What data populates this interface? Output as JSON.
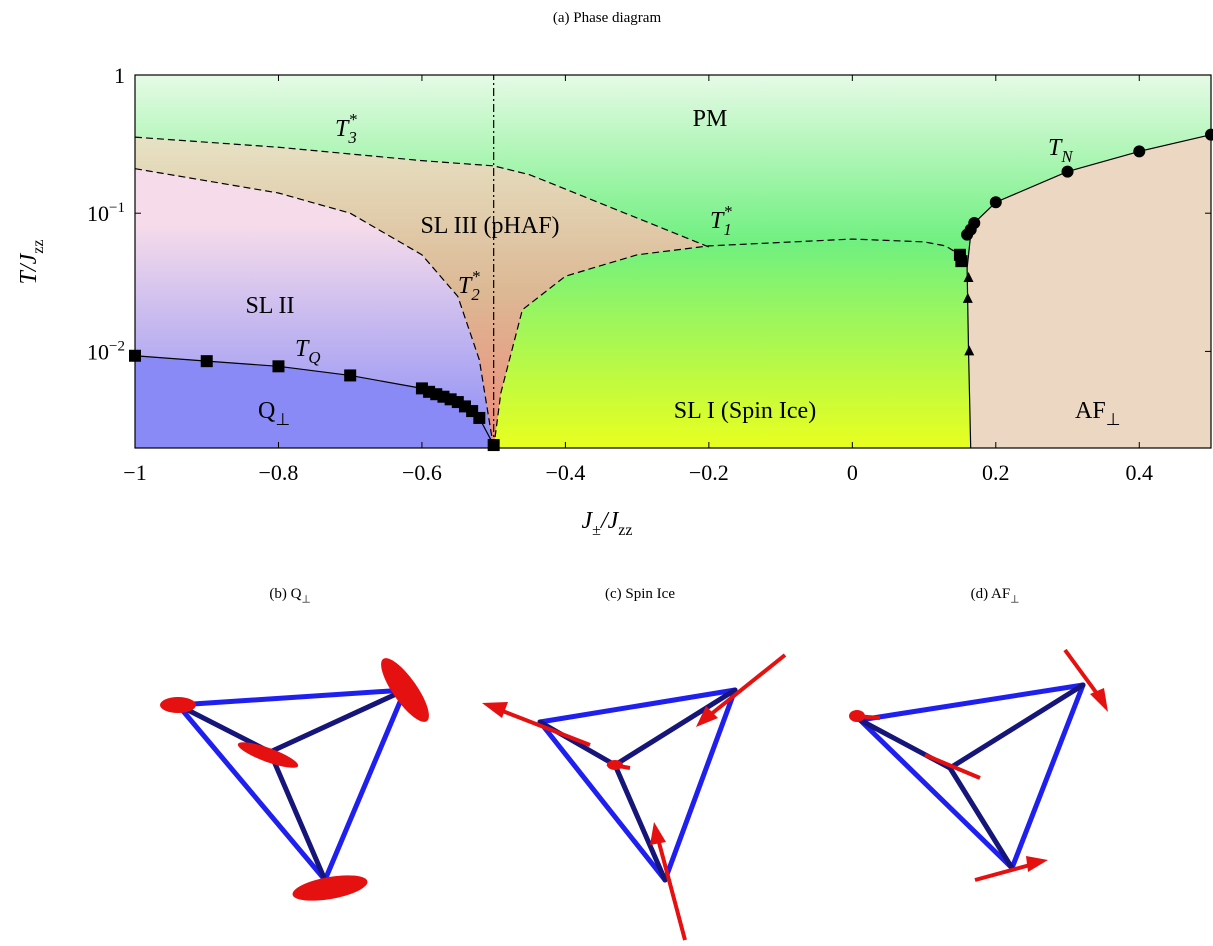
{
  "chart_data": {
    "type": "phase-diagram",
    "title": "(a) Phase diagram",
    "xlabel": [
      {
        "text": "J",
        "sub": "±"
      },
      {
        "text": "/J",
        "sub": "zz"
      }
    ],
    "ylabel": [
      {
        "text": "T/J",
        "sub": "zz"
      }
    ],
    "xlim": [
      -1,
      0.5
    ],
    "ylim": [
      0.002,
      1
    ],
    "ylog": true,
    "xticks": [
      {
        "value": -1,
        "label": "−1"
      },
      {
        "value": -0.8,
        "label": "−0.8"
      },
      {
        "value": -0.6,
        "label": "−0.6"
      },
      {
        "value": -0.4,
        "label": "−0.4"
      },
      {
        "value": -0.2,
        "label": "−0.2"
      },
      0,
      0.2,
      0.4
    ],
    "yticks": [
      {
        "value": 0.01,
        "label": "10",
        "sup": "−2"
      },
      {
        "value": 0.1,
        "label": "10",
        "sup": "−1"
      },
      1
    ],
    "series": [
      {
        "line": "dashed",
        "x": [
          -1,
          -0.8,
          -0.6,
          -0.5,
          -0.45,
          -0.2
        ],
        "values": [
          0.355,
          0.3,
          0.24,
          0.22,
          0.19,
          0.057
        ]
      },
      {
        "line": "dashed",
        "x": [
          -1,
          -0.8,
          -0.7,
          -0.6,
          -0.55,
          -0.52,
          -0.5
        ],
        "values": [
          0.21,
          0.14,
          0.1,
          0.05,
          0.025,
          0.0087,
          0.002
        ]
      },
      {
        "line": "dashed",
        "x": [
          -0.5,
          -0.49,
          -0.46,
          -0.4,
          -0.3,
          -0.2,
          0,
          0.1,
          0.13,
          0.15
        ],
        "values": [
          0.002,
          0.005,
          0.02,
          0.035,
          0.05,
          0.058,
          0.065,
          0.062,
          0.058,
          0.05
        ]
      },
      {
        "line": "dashdot",
        "x": [
          -0.5,
          -0.5
        ],
        "values": [
          0.002,
          1
        ]
      },
      {
        "line": "solid",
        "x": [
          0.165,
          0.162,
          0.16,
          0.165
        ],
        "values": [
          0.002,
          0.01,
          0.04,
          0.07
        ]
      },
      {
        "line": "solid",
        "marker": "square",
        "x": [
          -1,
          -0.9,
          -0.8,
          -0.7,
          -0.6,
          -0.59,
          -0.58,
          -0.57,
          -0.56,
          -0.55,
          -0.54,
          -0.53,
          -0.52,
          -0.5
        ],
        "values": [
          0.0093,
          0.0085,
          0.0078,
          0.0067,
          0.0054,
          0.0051,
          0.0049,
          0.0047,
          0.0045,
          0.0043,
          0.004,
          0.0037,
          0.0033,
          0.0021
        ]
      },
      {
        "line": "solid",
        "marker": "circle",
        "x": [
          0.16,
          0.165,
          0.17,
          0.2,
          0.3,
          0.4,
          0.5
        ],
        "values": [
          0.07,
          0.076,
          0.085,
          0.12,
          0.2,
          0.28,
          0.37
        ]
      },
      {
        "marker": "square",
        "x": [
          0.15,
          0.152
        ],
        "values": [
          0.05,
          0.045
        ]
      },
      {
        "marker": "triangle",
        "x": [
          0.162,
          0.161,
          0.163
        ],
        "values": [
          0.034,
          0.024,
          0.01
        ]
      }
    ],
    "annotations": [
      {
        "text": "PM"
      },
      {
        "text": "SL III (pHAF)"
      },
      {
        "text": "SL II"
      },
      {
        "text": "SL I (Spin Ice)"
      },
      {
        "text": "Q",
        "sub": "⊥"
      },
      {
        "text": "AF",
        "sub": "⊥"
      },
      {
        "text": "T",
        "sub": "3",
        "sup": "*"
      },
      {
        "text": "T",
        "sub": "1",
        "sup": "*"
      },
      {
        "text": "T",
        "sub": "2",
        "sup": "*"
      },
      {
        "text": "T",
        "sub": "N"
      },
      {
        "text": "T",
        "sub": "Q"
      }
    ]
  },
  "panels": [
    {
      "text": "(b) Q",
      "sub": "⊥"
    },
    {
      "text": "(c) Spin Ice"
    },
    {
      "text": "(d) AF",
      "sub": "⊥"
    }
  ]
}
